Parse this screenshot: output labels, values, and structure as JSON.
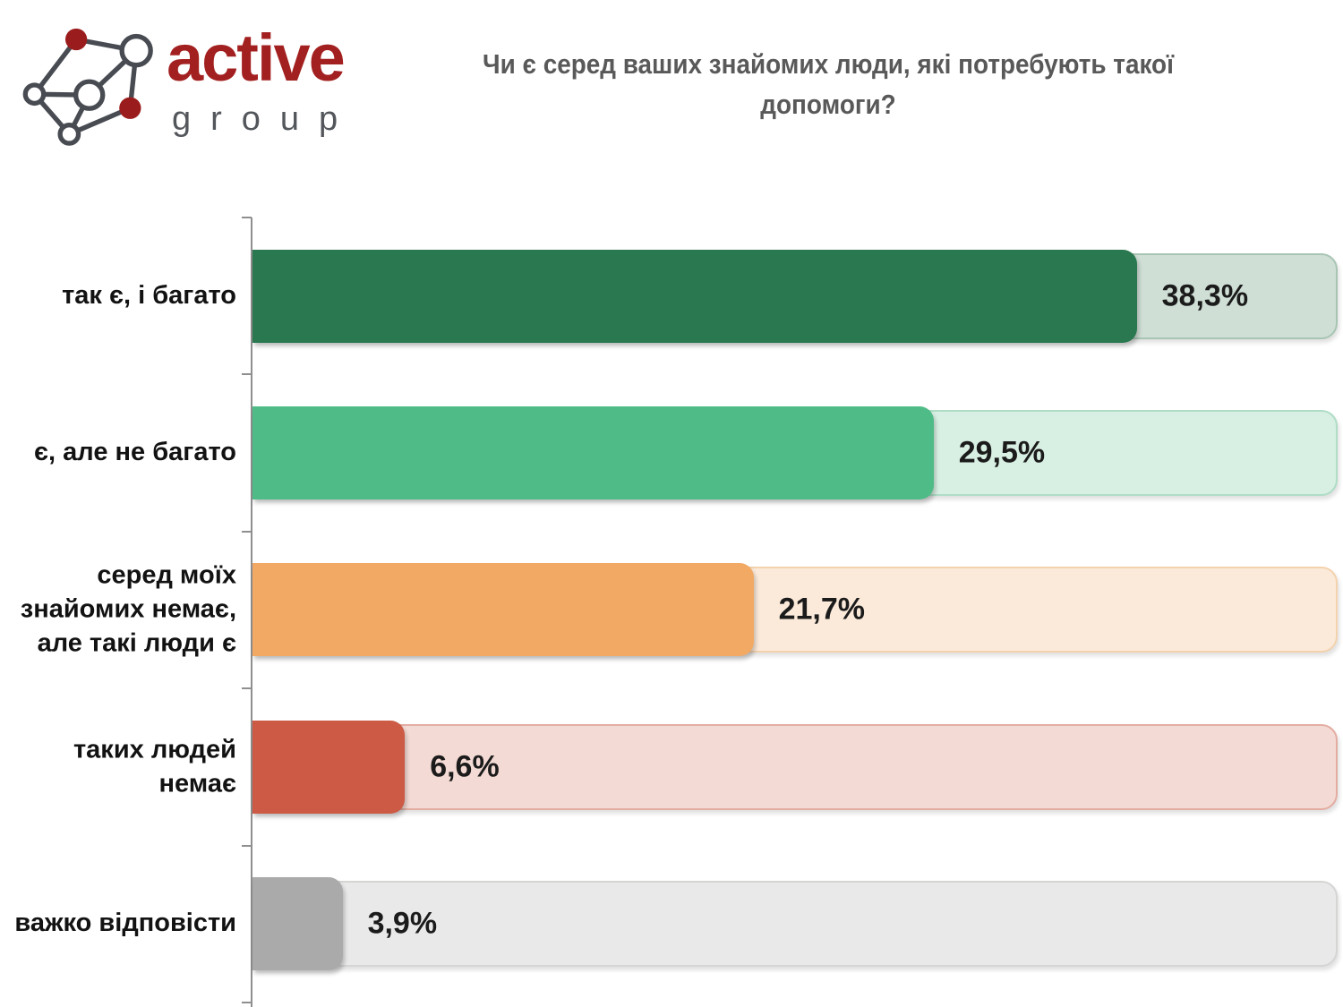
{
  "logo": {
    "wordmark": "active",
    "wordmark_sub": "group",
    "wordmark_color": "#A32020",
    "wordmark_sub_color": "#53565B",
    "icon": "network-graph-icon",
    "node_red": "#9B1C1C",
    "node_stroke": "#484C52"
  },
  "title": "Чи є серед ваших знайомих люди, які потребують такої допомоги?",
  "chart_data": {
    "type": "bar",
    "orientation": "horizontal",
    "title": "Чи є серед ваших знайомих люди, які потребують такої допомоги?",
    "categories": [
      "так є, і багато",
      "є, але не багато",
      "серед моїх знайомих немає, але такі люди є",
      "таких людей немає",
      "важко відповісти"
    ],
    "values": [
      38.3,
      29.5,
      21.7,
      6.6,
      3.9
    ],
    "value_labels": [
      "38,3%",
      "29,5%",
      "21,7%",
      "6,6%",
      "3,9%"
    ],
    "xlim": [
      0,
      47
    ],
    "grid": false,
    "legend": false,
    "value_label_position": "outside-end",
    "bar_colors": [
      "#29784F",
      "#4FBC87",
      "#F2A964",
      "#CC5A45",
      "#AAAAAA"
    ],
    "track_colors": [
      "#CFDFD6",
      "#D8EFE3",
      "#FBEADA",
      "#F4DAD4",
      "#E9E9E9"
    ],
    "track_border_colors": [
      "#A8C5B3",
      "#AFDDC6",
      "#F3D2AE",
      "#E3ADA2",
      "#D5D5D4"
    ]
  }
}
